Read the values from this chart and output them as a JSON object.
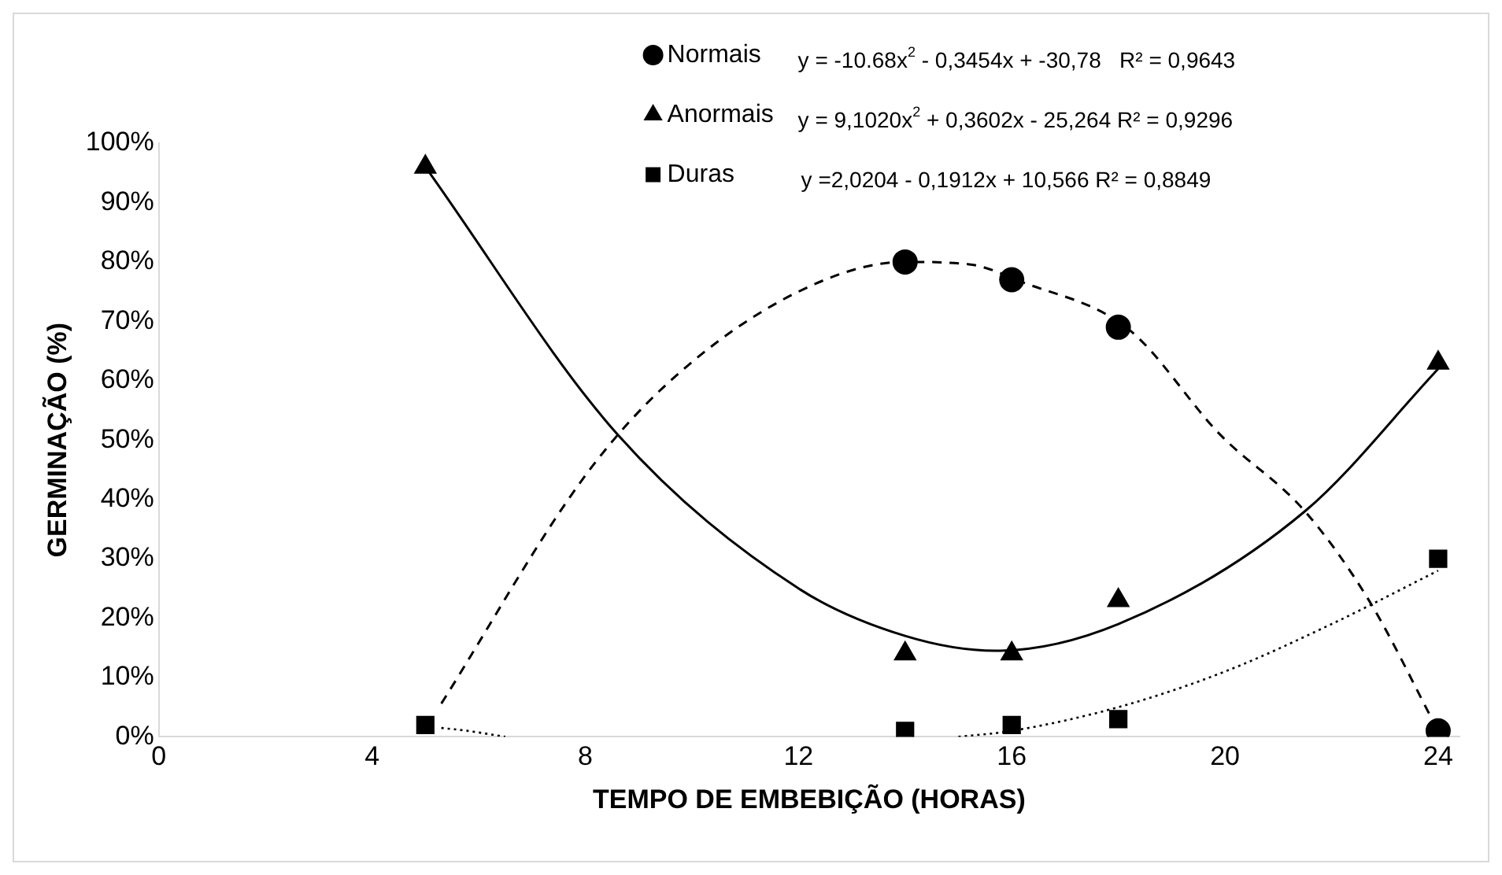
{
  "chart_data": {
    "type": "scatter",
    "xlabel": "TEMPO DE EMBEBIÇÃO (HORAS)",
    "ylabel": "GERMINAÇÃO (%)",
    "annotations": [
      "y = -10.68x$^{2}$ - 0,3454x + -30,78   R² = 0,9643",
      "y = 9,1020x$^{2}$ + 0,3602x - 25,264 R² = 0,9296",
      "y =2,0204 - 0,1912x + 10,566 R² = 0,8849"
    ],
    "x": [
      5,
      14,
      16,
      18,
      24
    ],
    "series": [
      {
        "name": "Normais",
        "color": "#000000",
        "marker": "circle",
        "values": [
          null,
          80,
          77,
          69,
          1
        ]
      },
      {
        "name": "Anormais",
        "color": "#000000",
        "marker": "triangle",
        "values": [
          96,
          14,
          14,
          23,
          63
        ]
      },
      {
        "name": "Duras",
        "color": "#000000",
        "marker": "square",
        "values": [
          2,
          1,
          2,
          3,
          30
        ]
      },
      {
        "type": "line",
        "color": "#000000",
        "line_style": "dashed",
        "marker": "none",
        "x": [
          5.3,
          8,
          9.6,
          12,
          14,
          15.2,
          16.2,
          18.2,
          19.9,
          21.5,
          22.7,
          24
        ],
        "values": [
          5.6,
          44,
          60,
          75,
          80,
          79.6,
          76.6,
          68.6,
          51,
          38,
          23,
          1
        ]
      },
      {
        "type": "line",
        "color": "#000000",
        "line_style": "solid",
        "marker": "none",
        "x": [
          5,
          8.6,
          12,
          14,
          15.7,
          18,
          21.5,
          24
        ],
        "values": [
          96,
          51,
          25,
          17,
          14.5,
          19,
          38,
          62
        ]
      },
      {
        "type": "line",
        "color": "#000000",
        "line_style": "dotted",
        "marker": "none",
        "x": [
          5.3,
          5.8,
          6.5,
          10,
          15,
          16,
          18,
          20,
          22,
          24
        ],
        "values": [
          1.5,
          1,
          0,
          null,
          0,
          1,
          5,
          11,
          19,
          28
        ]
      }
    ],
    "xlim": [
      0,
      24.4
    ],
    "xticks": [
      0,
      4,
      8,
      12,
      16,
      20,
      24
    ],
    "ylim": [
      0,
      100
    ],
    "yticks": [
      {
        "value": 0,
        "label": "0%"
      },
      {
        "value": 10,
        "label": "10%"
      },
      {
        "value": 20,
        "label": "20%"
      },
      {
        "value": 30,
        "label": "30%"
      },
      {
        "value": 40,
        "label": "40%"
      },
      {
        "value": 50,
        "label": "50%"
      },
      {
        "value": 60,
        "label": "60%"
      },
      {
        "value": 70,
        "label": "70%"
      },
      {
        "value": 80,
        "label": "80%"
      },
      {
        "value": 90,
        "label": "90%"
      },
      {
        "value": 100,
        "label": "100%"
      }
    ],
    "grid": false,
    "legend": "top"
  }
}
